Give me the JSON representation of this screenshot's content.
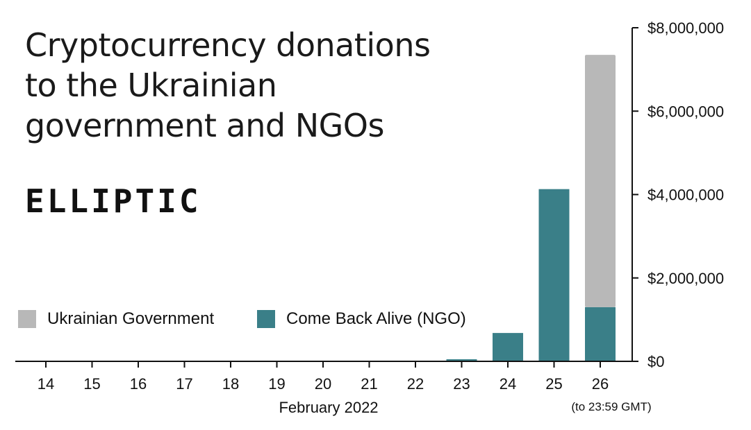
{
  "header": {
    "title_lines": [
      "Cryptocurrency donations",
      "to the Ukrainian",
      "government and NGOs"
    ],
    "brand": "ELLIPTIC"
  },
  "legend": {
    "government_label": "Ukrainian Government",
    "ngo_label": "Come Back Alive (NGO)"
  },
  "chart_data": {
    "type": "bar",
    "stacked": true,
    "title": "Cryptocurrency donations to the Ukrainian government and NGOs",
    "xlabel": "February 2022",
    "x_note": "(to 23:59 GMT)",
    "ylabel": "",
    "categories": [
      "14",
      "15",
      "16",
      "17",
      "18",
      "19",
      "20",
      "21",
      "22",
      "23",
      "24",
      "25",
      "26"
    ],
    "series": [
      {
        "name": "Come Back Alive (NGO)",
        "color": "#3a7f88",
        "values": [
          0,
          0,
          0,
          0,
          0,
          0,
          0,
          0,
          0,
          50000,
          680000,
          4130000,
          1300000
        ]
      },
      {
        "name": "Ukrainian Government",
        "color": "#b8b8b8",
        "values": [
          0,
          0,
          0,
          0,
          0,
          0,
          0,
          0,
          0,
          0,
          0,
          0,
          6050000
        ]
      }
    ],
    "ylim": [
      0,
      8000000
    ],
    "yticks": [
      0,
      2000000,
      4000000,
      6000000,
      8000000
    ],
    "ytick_labels": [
      "$0",
      "$2,000,000",
      "$4,000,000",
      "$6,000,000",
      "$8,000,000"
    ],
    "y_axis_side": "right",
    "grid": false,
    "legend_position": "bottom-left"
  }
}
